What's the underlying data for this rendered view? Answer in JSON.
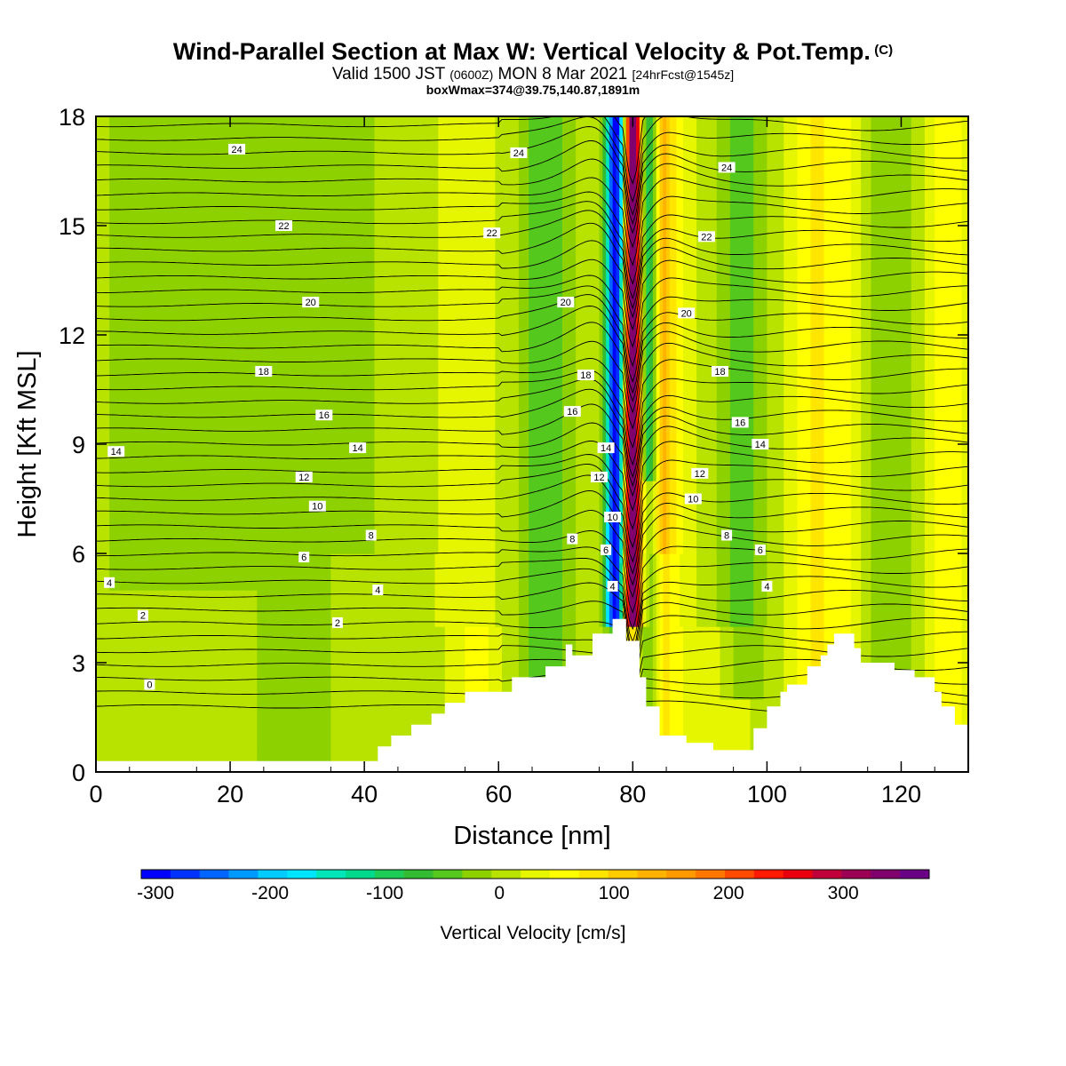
{
  "title": {
    "main": "Wind-Parallel Section at Max W: Vertical Velocity & Pot.Temp.",
    "main_suffix": "(C)",
    "valid_a": "Valid 1500 JST",
    "valid_small": "(0600Z)",
    "valid_b": "MON 8 Mar 2021",
    "valid_small2": "[24hrFcst@1545z]",
    "box": "boxWmax=374@39.75,140.87,1891m"
  },
  "chart_data": {
    "type": "heatmap",
    "xlabel": "Distance [nm]",
    "ylabel": "Height [Kft MSL]",
    "xlim": [
      0,
      130
    ],
    "ylim": [
      0,
      18
    ],
    "x_ticks": [
      0,
      20,
      40,
      60,
      80,
      100,
      120
    ],
    "y_ticks": [
      0,
      3,
      6,
      9,
      12,
      15,
      18
    ],
    "colorbar": {
      "title": "Vertical Velocity [cm/s]",
      "ticks": [
        -300,
        -200,
        -100,
        0,
        100,
        200,
        300
      ],
      "range": [
        -312.5,
        375
      ],
      "colors": [
        "#0000ff",
        "#0033ff",
        "#0066ff",
        "#0099ff",
        "#00ccff",
        "#00e5ff",
        "#00e6b8",
        "#00d98c",
        "#1ccc55",
        "#33bb33",
        "#55c81e",
        "#8ed100",
        "#b8e200",
        "#e6f500",
        "#ffff00",
        "#ffe600",
        "#ffcc00",
        "#ffb300",
        "#ff9900",
        "#ff7700",
        "#ff4a00",
        "#ff1a00",
        "#e8000f",
        "#c0003a",
        "#9b0055",
        "#80006e",
        "#6a0085"
      ]
    },
    "terrain_profile_kft": [
      [
        0,
        0.3
      ],
      [
        42,
        0.3
      ],
      [
        42,
        0.7
      ],
      [
        44,
        0.7
      ],
      [
        44,
        1.0
      ],
      [
        47,
        1.0
      ],
      [
        47,
        1.3
      ],
      [
        50,
        1.3
      ],
      [
        50,
        1.6
      ],
      [
        52,
        1.6
      ],
      [
        52,
        1.9
      ],
      [
        55,
        1.9
      ],
      [
        55,
        2.2
      ],
      [
        62,
        2.2
      ],
      [
        62,
        2.6
      ],
      [
        67,
        2.6
      ],
      [
        67,
        2.9
      ],
      [
        70,
        2.9
      ],
      [
        70,
        3.5
      ],
      [
        71,
        3.5
      ],
      [
        71,
        3.2
      ],
      [
        74,
        3.2
      ],
      [
        74,
        3.8
      ],
      [
        77,
        3.8
      ],
      [
        77,
        4.2
      ],
      [
        79,
        4.2
      ],
      [
        79,
        3.6
      ],
      [
        81,
        3.6
      ],
      [
        81,
        2.6
      ],
      [
        82,
        2.6
      ],
      [
        82,
        1.8
      ],
      [
        84,
        1.8
      ],
      [
        84,
        1.0
      ],
      [
        88,
        1.0
      ],
      [
        88,
        0.8
      ],
      [
        92,
        0.8
      ],
      [
        92,
        0.6
      ],
      [
        98,
        0.6
      ],
      [
        98,
        1.2
      ],
      [
        100,
        1.2
      ],
      [
        100,
        1.8
      ],
      [
        102,
        1.8
      ],
      [
        102,
        2.2
      ],
      [
        103,
        2.2
      ],
      [
        103,
        2.4
      ],
      [
        106,
        2.4
      ],
      [
        106,
        2.9
      ],
      [
        108,
        2.9
      ],
      [
        108,
        3.2
      ],
      [
        109,
        3.2
      ],
      [
        109,
        3.5
      ],
      [
        110,
        3.5
      ],
      [
        110,
        3.8
      ],
      [
        113,
        3.8
      ],
      [
        113,
        3.4
      ],
      [
        114,
        3.4
      ],
      [
        114,
        3.0
      ],
      [
        119,
        3.0
      ],
      [
        119,
        2.8
      ],
      [
        122,
        2.8
      ],
      [
        122,
        2.6
      ],
      [
        125,
        2.6
      ],
      [
        125,
        2.2
      ],
      [
        126,
        2.2
      ],
      [
        126,
        1.8
      ],
      [
        128,
        1.8
      ],
      [
        128,
        1.3
      ],
      [
        130,
        1.3
      ]
    ],
    "contour_labels": [
      {
        "v": "24",
        "x": 21,
        "y": 17.1
      },
      {
        "v": "24",
        "x": 63,
        "y": 17.0
      },
      {
        "v": "24",
        "x": 94,
        "y": 16.6
      },
      {
        "v": "22",
        "x": 28,
        "y": 15.0
      },
      {
        "v": "22",
        "x": 59,
        "y": 14.8
      },
      {
        "v": "22",
        "x": 91,
        "y": 14.7
      },
      {
        "v": "20",
        "x": 32,
        "y": 12.9
      },
      {
        "v": "20",
        "x": 70,
        "y": 12.9
      },
      {
        "v": "20",
        "x": 88,
        "y": 12.6
      },
      {
        "v": "18",
        "x": 25,
        "y": 11.0
      },
      {
        "v": "18",
        "x": 73,
        "y": 10.9
      },
      {
        "v": "18",
        "x": 93,
        "y": 11.0
      },
      {
        "v": "16",
        "x": 34,
        "y": 9.8
      },
      {
        "v": "16",
        "x": 71,
        "y": 9.9
      },
      {
        "v": "16",
        "x": 96,
        "y": 9.6
      },
      {
        "v": "14",
        "x": 3,
        "y": 8.8
      },
      {
        "v": "14",
        "x": 39,
        "y": 8.9
      },
      {
        "v": "14",
        "x": 76,
        "y": 8.9
      },
      {
        "v": "14",
        "x": 99,
        "y": 9.0
      },
      {
        "v": "12",
        "x": 31,
        "y": 8.1
      },
      {
        "v": "12",
        "x": 75,
        "y": 8.1
      },
      {
        "v": "12",
        "x": 90,
        "y": 8.2
      },
      {
        "v": "10",
        "x": 33,
        "y": 7.3
      },
      {
        "v": "10",
        "x": 77,
        "y": 7.0
      },
      {
        "v": "10",
        "x": 89,
        "y": 7.5
      },
      {
        "v": "8",
        "x": 41,
        "y": 6.5
      },
      {
        "v": "8",
        "x": 71,
        "y": 6.4
      },
      {
        "v": "8",
        "x": 94,
        "y": 6.5
      },
      {
        "v": "6",
        "x": 31,
        "y": 5.9
      },
      {
        "v": "6",
        "x": 76,
        "y": 6.1
      },
      {
        "v": "6",
        "x": 99,
        "y": 6.1
      },
      {
        "v": "4",
        "x": 2,
        "y": 5.2
      },
      {
        "v": "4",
        "x": 42,
        "y": 5.0
      },
      {
        "v": "4",
        "x": 77,
        "y": 5.1
      },
      {
        "v": "4",
        "x": 100,
        "y": 5.1
      },
      {
        "v": "2",
        "x": 7,
        "y": 4.3
      },
      {
        "v": "2",
        "x": 36,
        "y": 4.1
      },
      {
        "v": "0",
        "x": 8,
        "y": 2.4
      }
    ]
  }
}
